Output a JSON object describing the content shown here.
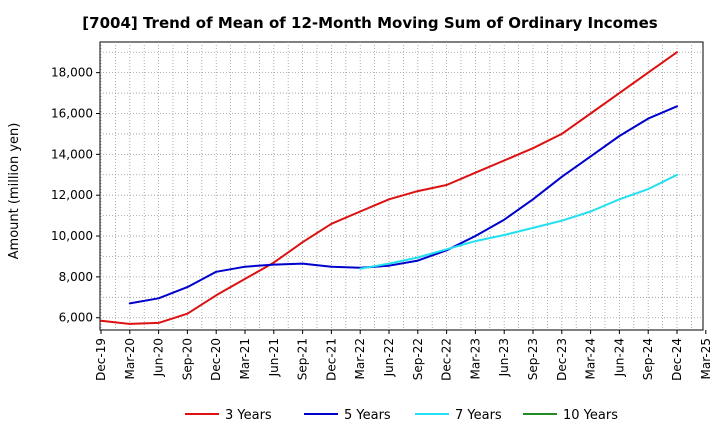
{
  "chart_data": {
    "type": "line",
    "title": "[7004]  Trend of Mean of 12-Month Moving Sum of Ordinary Incomes",
    "ylabel": "Amount (million yen)",
    "xlabel": "",
    "ylim": [
      5400,
      19500
    ],
    "y_ticks": [
      6000,
      8000,
      10000,
      12000,
      14000,
      16000,
      18000
    ],
    "y_tick_labels": [
      "6,000",
      "8,000",
      "10,000",
      "12,000",
      "14,000",
      "16,000",
      "18,000"
    ],
    "x_tick_labels": [
      "Dec-19",
      "Mar-20",
      "Jun-20",
      "Sep-20",
      "Dec-20",
      "Mar-21",
      "Jun-21",
      "Sep-21",
      "Dec-21",
      "Mar-22",
      "Jun-22",
      "Sep-22",
      "Dec-22",
      "Mar-23",
      "Jun-23",
      "Sep-23",
      "Dec-23",
      "Mar-24",
      "Jun-24",
      "Sep-24",
      "Dec-24",
      "Mar-25"
    ],
    "grid": true,
    "legend_position": "bottom",
    "series": [
      {
        "name": "3 Years",
        "color": "#dd1111",
        "values": [
          5850,
          5700,
          5750,
          6200,
          7100,
          7900,
          8700,
          9700,
          10600,
          11200,
          11800,
          12200,
          12500,
          13100,
          13700,
          14300,
          15000,
          16000,
          17000,
          18000,
          19000
        ]
      },
      {
        "name": "5 Years",
        "color": "#0000cc",
        "values": [
          null,
          6700,
          6950,
          7500,
          8250,
          8500,
          8600,
          8650,
          8500,
          8450,
          8550,
          8800,
          9300,
          10000,
          10800,
          11800,
          12900,
          13900,
          14900,
          15750,
          16350
        ]
      },
      {
        "name": "7 Years",
        "color": "#22e0ee",
        "values": [
          null,
          null,
          null,
          null,
          null,
          null,
          null,
          null,
          null,
          8400,
          8650,
          8950,
          9350,
          9750,
          10050,
          10400,
          10750,
          11200,
          11800,
          12300,
          13000
        ]
      },
      {
        "name": "10 Years",
        "color": "#228b22",
        "values": []
      }
    ]
  }
}
